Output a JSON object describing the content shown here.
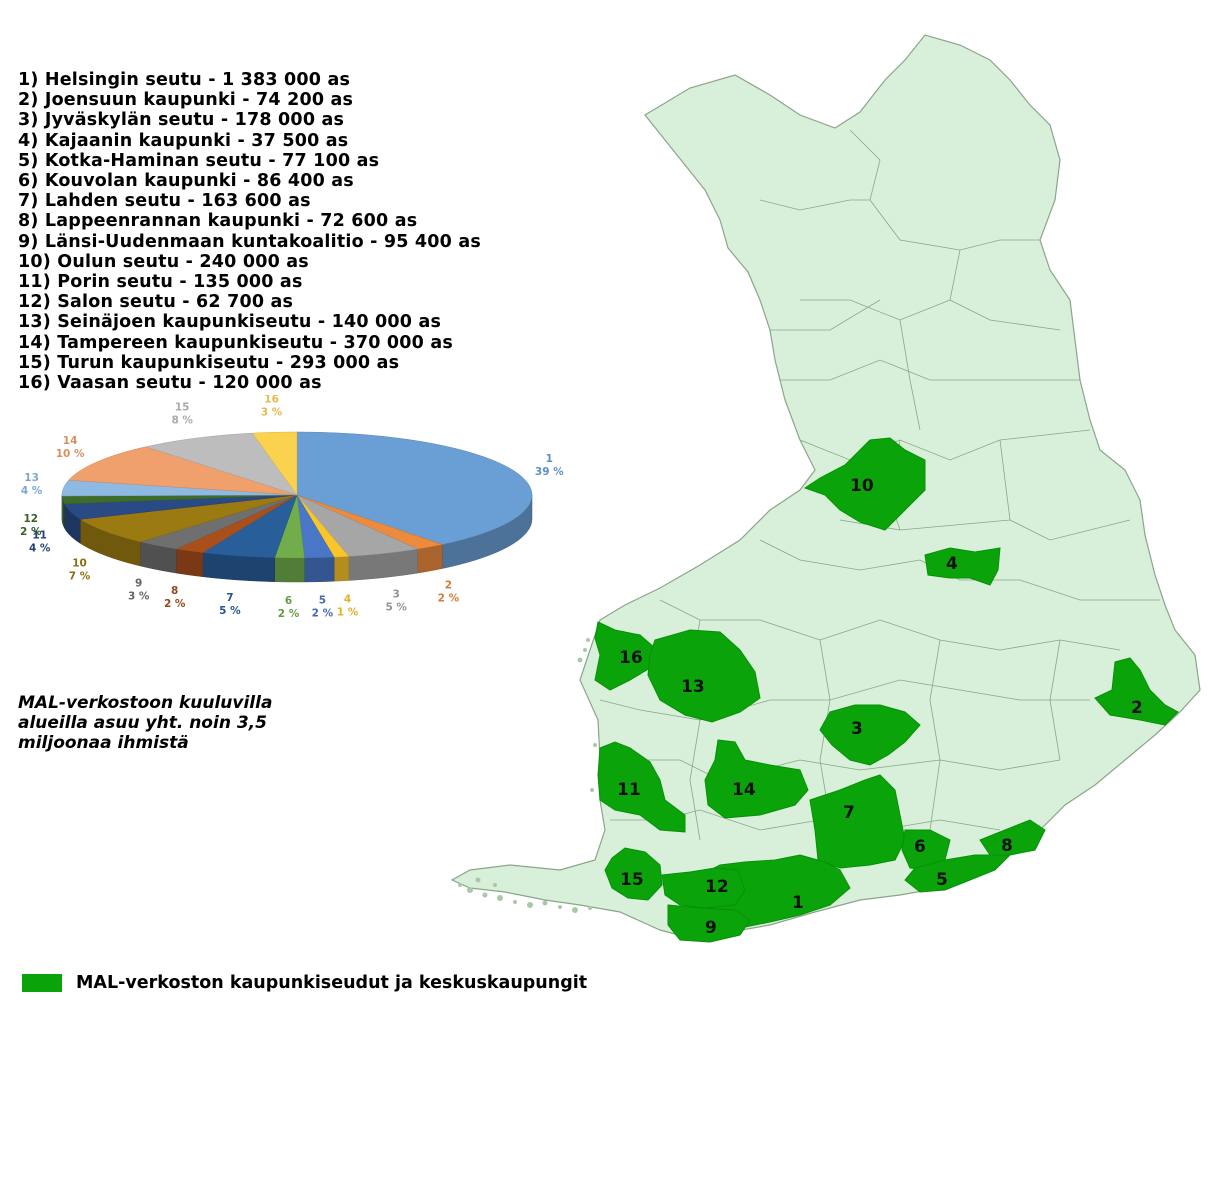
{
  "regions": [
    {
      "num": "1",
      "label": "1) Helsingin seutu - 1 383 000 as"
    },
    {
      "num": "2",
      "label": "2) Joensuun kaupunki - 74 200 as"
    },
    {
      "num": "3",
      "label": "3) Jyväskylän seutu - 178 000 as"
    },
    {
      "num": "4",
      "label": "4) Kajaanin kaupunki - 37 500 as"
    },
    {
      "num": "5",
      "label": "5) Kotka-Haminan seutu - 77 100 as"
    },
    {
      "num": "6",
      "label": "6) Kouvolan kaupunki - 86 400 as"
    },
    {
      "num": "7",
      "label": "7) Lahden seutu - 163 600 as"
    },
    {
      "num": "8",
      "label": "8) Lappeenrannan kaupunki - 72 600 as"
    },
    {
      "num": "9",
      "label": "9) Länsi-Uudenmaan kuntakoalitio - 95 400 as"
    },
    {
      "num": "10",
      "label": "10) Oulun seutu - 240 000 as"
    },
    {
      "num": "11",
      "label": "11) Porin seutu - 135 000 as"
    },
    {
      "num": "12",
      "label": "12) Salon seutu - 62 700 as"
    },
    {
      "num": "13",
      "label": "13) Seinäjoen kaupunkiseutu - 140 000 as"
    },
    {
      "num": "14",
      "label": "14) Tampereen kaupunkiseutu - 370 000 as"
    },
    {
      "num": "15",
      "label": "15) Turun kaupunkiseutu - 293 000 as"
    },
    {
      "num": "16",
      "label": "16) Vaasan seutu - 120 000 as"
    }
  ],
  "chart_data": {
    "type": "pie",
    "categories": [
      "1",
      "2",
      "3",
      "4",
      "5",
      "6",
      "7",
      "8",
      "9",
      "10",
      "11",
      "12",
      "13",
      "14",
      "15",
      "16"
    ],
    "values": [
      39,
      2,
      5,
      1,
      2,
      2,
      5,
      2,
      3,
      7,
      4,
      2,
      4,
      10,
      8,
      3
    ],
    "percent_labels": [
      "39 %",
      "2 %",
      "5 %",
      "1 %",
      "2 %",
      "2 %",
      "5 %",
      "2 %",
      "3 %",
      "7 %",
      "4 %",
      "2 %",
      "4 %",
      "10 %",
      "8 %",
      "3 %"
    ],
    "colors": [
      "#6a9fd6",
      "#ec8a3e",
      "#a6a6a6",
      "#f9c52a",
      "#4a76c8",
      "#72ad4c",
      "#285f9a",
      "#a94f1c",
      "#6f6f6f",
      "#9b7a12",
      "#2a4a86",
      "#3f6c2a",
      "#8db9e2",
      "#f0a06c",
      "#bdbdbd",
      "#fbd24e"
    ]
  },
  "summary_text": "MAL-verkostoon kuuluvilla alueilla asuu yht. noin 3,5 miljoonaa ihmistä",
  "legend": {
    "label": "MAL-verkoston kaupunkiseudut ja keskuskaupungit",
    "color": "#0aa40a"
  },
  "map": {
    "base_color": "#d8f0d9",
    "border_color": "#8aa58a",
    "highlight_color": "#0aa40a"
  }
}
